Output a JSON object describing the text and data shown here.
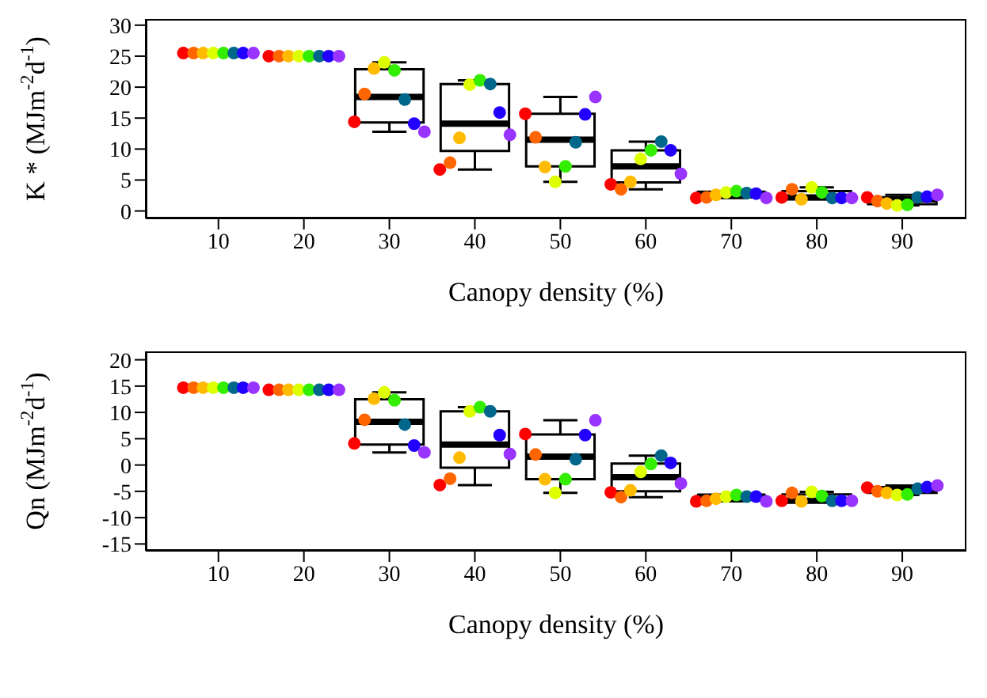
{
  "chart_data": [
    {
      "type": "box",
      "color": "#000000",
      "xlabel": "Canopy density (%)",
      "ylabel": "K * (MJm$^{-2}$d$^{-1}$)",
      "x": [
        10,
        20,
        30,
        40,
        50,
        60,
        70,
        80,
        90
      ],
      "xlim": [
        1.5,
        97.5
      ],
      "xticks": [
        10,
        20,
        30,
        40,
        50,
        60,
        70,
        80,
        90
      ],
      "ylim": [
        -1.2,
        31
      ],
      "yticks": [
        0,
        5,
        10,
        15,
        20,
        25,
        30
      ],
      "marker": "circle",
      "boxes": [
        {
          "low": 25.5,
          "q1": 25.5,
          "median": 25.5,
          "q3": 25.5,
          "high": 25.5
        },
        {
          "low": 25.0,
          "q1": 25.0,
          "median": 25.0,
          "q3": 25.0,
          "high": 25.0
        },
        {
          "low": 12.8,
          "q1": 14.3,
          "median": 18.4,
          "q3": 22.9,
          "high": 24.0
        },
        {
          "low": 6.7,
          "q1": 9.7,
          "median": 14.1,
          "q3": 20.5,
          "high": 21.1
        },
        {
          "low": 4.7,
          "q1": 7.2,
          "median": 11.5,
          "q3": 15.7,
          "high": 18.4
        },
        {
          "low": 3.5,
          "q1": 4.6,
          "median": 7.2,
          "q3": 9.8,
          "high": 11.2
        },
        {
          "low": 2.1,
          "q1": 2.2,
          "median": 2.8,
          "q3": 3.0,
          "high": 3.2
        },
        {
          "low": 1.9,
          "q1": 2.1,
          "median": 2.2,
          "q3": 3.2,
          "high": 3.8
        },
        {
          "low": 0.9,
          "q1": 1.1,
          "median": 1.9,
          "q3": 2.2,
          "high": 2.6
        }
      ],
      "series": [
        {
          "type": "scatter",
          "color": "#ff0000",
          "x": [
            5.9,
            15.9,
            25.9,
            35.9,
            45.9,
            55.9,
            65.9,
            75.9,
            85.9
          ],
          "values": [
            25.5,
            25.0,
            14.4,
            6.7,
            15.7,
            4.3,
            2.1,
            2.2,
            2.2
          ]
        },
        {
          "type": "scatter",
          "color": "#ff6600",
          "x": [
            7.1,
            17.1,
            27.1,
            37.1,
            47.1,
            57.1,
            67.1,
            77.1,
            87.1
          ],
          "values": [
            25.5,
            25.0,
            18.9,
            7.8,
            11.9,
            3.5,
            2.2,
            3.5,
            1.6
          ]
        },
        {
          "type": "scatter",
          "color": "#ffbb00",
          "x": [
            8.2,
            18.2,
            28.2,
            38.2,
            48.2,
            58.2,
            68.2,
            78.2,
            88.2
          ],
          "values": [
            25.5,
            25.0,
            23.0,
            11.8,
            7.1,
            4.7,
            2.6,
            1.9,
            1.2
          ]
        },
        {
          "type": "scatter",
          "color": "#ddff00",
          "x": [
            9.4,
            19.4,
            29.4,
            39.4,
            49.4,
            59.4,
            69.4,
            79.4,
            89.4
          ],
          "values": [
            25.5,
            25.0,
            24.0,
            20.4,
            4.7,
            8.4,
            3.0,
            3.8,
            0.9
          ]
        },
        {
          "type": "scatter",
          "color": "#33ee00",
          "x": [
            10.6,
            20.6,
            30.6,
            40.6,
            50.6,
            60.6,
            70.6,
            80.6,
            90.6
          ],
          "values": [
            25.5,
            25.0,
            22.7,
            21.1,
            7.2,
            9.8,
            3.2,
            3.0,
            1.0
          ]
        },
        {
          "type": "scatter",
          "color": "#00668a",
          "x": [
            11.8,
            21.8,
            31.8,
            41.8,
            51.8,
            61.8,
            71.8,
            81.8,
            91.8
          ],
          "values": [
            25.5,
            25.0,
            18.0,
            20.5,
            11.1,
            11.2,
            2.9,
            2.1,
            2.2
          ]
        },
        {
          "type": "scatter",
          "color": "#2200ff",
          "x": [
            12.9,
            22.9,
            32.9,
            42.9,
            52.9,
            62.9,
            72.9,
            82.9,
            92.9
          ],
          "values": [
            25.5,
            25.0,
            14.1,
            15.9,
            15.6,
            9.8,
            2.8,
            2.1,
            2.3
          ]
        },
        {
          "type": "scatter",
          "color": "#9933ff",
          "x": [
            14.1,
            24.1,
            34.1,
            44.1,
            54.1,
            64.1,
            74.1,
            84.1,
            94.1
          ],
          "values": [
            25.5,
            25.0,
            12.8,
            12.3,
            18.4,
            6.0,
            2.1,
            2.1,
            2.6
          ]
        }
      ]
    },
    {
      "type": "box",
      "color": "#000000",
      "xlabel": "Canopy density (%)",
      "ylabel": "Qn (MJm$^{-2}$d$^{-1}$)",
      "x": [
        10,
        20,
        30,
        40,
        50,
        60,
        70,
        80,
        90
      ],
      "xlim": [
        1.5,
        97.5
      ],
      "xticks": [
        10,
        20,
        30,
        40,
        50,
        60,
        70,
        80,
        90
      ],
      "ylim": [
        -16.3,
        21.6
      ],
      "yticks": [
        -15,
        -10,
        -5,
        0,
        5,
        10,
        15,
        20
      ],
      "marker": "circle",
      "boxes": [
        {
          "low": 14.7,
          "q1": 14.7,
          "median": 14.7,
          "q3": 14.7,
          "high": 14.7
        },
        {
          "low": 14.3,
          "q1": 14.3,
          "median": 14.3,
          "q3": 14.3,
          "high": 14.3
        },
        {
          "low": 2.4,
          "q1": 3.9,
          "median": 8.2,
          "q3": 12.5,
          "high": 13.8
        },
        {
          "low": -3.8,
          "q1": -0.5,
          "median": 3.9,
          "q3": 10.2,
          "high": 11.0
        },
        {
          "low": -5.3,
          "q1": -2.7,
          "median": 1.6,
          "q3": 5.8,
          "high": 8.5
        },
        {
          "low": -6.1,
          "q1": -5.0,
          "median": -2.3,
          "q3": 0.3,
          "high": 1.8
        },
        {
          "low": -6.9,
          "q1": -6.6,
          "median": -6.0,
          "q3": -5.9,
          "high": -5.7
        },
        {
          "low": -6.9,
          "q1": -6.8,
          "median": -6.8,
          "q3": -5.6,
          "high": -5.1
        },
        {
          "low": -5.7,
          "q1": -5.3,
          "median": -4.6,
          "q3": -4.2,
          "high": -3.9
        }
      ],
      "series": [
        {
          "type": "scatter",
          "color": "#ff0000",
          "x": [
            5.9,
            15.9,
            25.9,
            35.9,
            45.9,
            55.9,
            65.9,
            75.9,
            85.9
          ],
          "values": [
            14.7,
            14.3,
            4.1,
            -3.8,
            5.9,
            -5.2,
            -6.9,
            -6.8,
            -4.3
          ]
        },
        {
          "type": "scatter",
          "color": "#ff6600",
          "x": [
            7.1,
            17.1,
            27.1,
            37.1,
            47.1,
            57.1,
            67.1,
            77.1,
            87.1
          ],
          "values": [
            14.7,
            14.3,
            8.6,
            -2.6,
            2.0,
            -6.1,
            -6.8,
            -5.3,
            -5.0
          ]
        },
        {
          "type": "scatter",
          "color": "#ffbb00",
          "x": [
            8.2,
            18.2,
            28.2,
            38.2,
            48.2,
            58.2,
            68.2,
            78.2,
            88.2
          ],
          "values": [
            14.7,
            14.3,
            12.6,
            1.4,
            -2.7,
            -4.8,
            -6.4,
            -6.9,
            -5.3
          ]
        },
        {
          "type": "scatter",
          "color": "#ddff00",
          "x": [
            9.4,
            19.4,
            29.4,
            39.4,
            49.4,
            59.4,
            69.4,
            79.4,
            89.4
          ],
          "values": [
            14.7,
            14.3,
            13.8,
            10.2,
            -5.3,
            -1.3,
            -6.0,
            -5.1,
            -5.7
          ]
        },
        {
          "type": "scatter",
          "color": "#33ee00",
          "x": [
            10.6,
            20.6,
            30.6,
            40.6,
            50.6,
            60.6,
            70.6,
            80.6,
            90.6
          ],
          "values": [
            14.7,
            14.3,
            12.3,
            11.0,
            -2.7,
            0.2,
            -5.7,
            -5.9,
            -5.6
          ]
        },
        {
          "type": "scatter",
          "color": "#00668a",
          "x": [
            11.8,
            21.8,
            31.8,
            41.8,
            51.8,
            61.8,
            71.8,
            81.8,
            91.8
          ],
          "values": [
            14.7,
            14.3,
            7.7,
            10.2,
            1.1,
            1.8,
            -6.0,
            -6.8,
            -4.5
          ]
        },
        {
          "type": "scatter",
          "color": "#2200ff",
          "x": [
            12.9,
            22.9,
            32.9,
            42.9,
            52.9,
            62.9,
            72.9,
            82.9,
            92.9
          ],
          "values": [
            14.7,
            14.3,
            3.7,
            5.7,
            5.7,
            0.4,
            -6.0,
            -6.8,
            -4.2
          ]
        },
        {
          "type": "scatter",
          "color": "#9933ff",
          "x": [
            14.1,
            24.1,
            34.1,
            44.1,
            54.1,
            64.1,
            74.1,
            84.1,
            94.1
          ],
          "values": [
            14.7,
            14.3,
            2.4,
            2.1,
            8.5,
            -3.5,
            -6.9,
            -6.8,
            -3.9
          ]
        }
      ]
    }
  ]
}
